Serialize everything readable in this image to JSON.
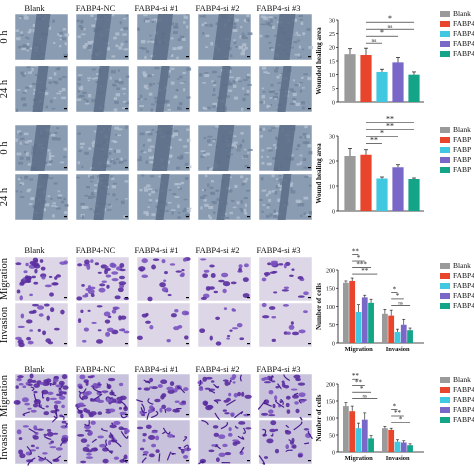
{
  "panels": [
    {
      "column_labels": [
        "Blank",
        "FABP4-NC",
        "FABP4-si #1",
        "FABP4-si #2",
        "FABP4-si #3"
      ],
      "row_labels": [
        "0 h",
        "24 h"
      ],
      "image_kind": "wound",
      "chart_data": {
        "type": "bar",
        "categories": [
          "Blank",
          "FABP4-NC",
          "FABP4-si #1",
          "FABP4-si #2",
          "FABP4-si #3"
        ],
        "values": [
          17.5,
          17.2,
          11.0,
          14.5,
          10.0
        ],
        "errors": [
          2.0,
          2.5,
          1.0,
          1.8,
          1.0
        ],
        "ylabel": "Wounded healing area",
        "ylim": [
          0,
          30
        ],
        "yticks": [
          0,
          5,
          10,
          15,
          20,
          25,
          30
        ],
        "legend": [
          "Blank",
          "FABP4",
          "FABP4",
          "FABP4",
          "FABP4"
        ],
        "significance": [
          "ns",
          "*",
          "ns",
          "*"
        ]
      }
    },
    {
      "column_labels": [],
      "row_labels": [
        "0 h",
        "24 h"
      ],
      "image_kind": "wound",
      "chart_data": {
        "type": "bar",
        "categories": [
          "Blank",
          "FABP4-NC",
          "FABP4-si #1",
          "FABP4-si #2",
          "FABP4-si #3"
        ],
        "values": [
          22.0,
          22.5,
          13.0,
          17.5,
          12.8
        ],
        "errors": [
          3.0,
          2.0,
          0.6,
          1.0,
          0.4
        ],
        "ylabel": "Wound healing area",
        "ylim": [
          0,
          30
        ],
        "yticks": [
          0,
          10,
          20,
          30
        ],
        "legend": [
          "Blank",
          "FABP",
          "FABP",
          "FABP",
          "FABP"
        ],
        "significance": [
          "**",
          "*",
          "**",
          "**"
        ]
      }
    },
    {
      "column_labels": [
        "Blank",
        "FABP4-NC",
        "FABP4-si #1",
        "FABP4-si #2",
        "FABP4-si #3"
      ],
      "row_labels": [
        "Migration",
        "Invasion"
      ],
      "image_kind": "transwell-light",
      "chart_data": {
        "type": "bar",
        "categories": [
          "Migration",
          "Invasion"
        ],
        "series": [
          {
            "name": "Blank",
            "values": [
              165,
              80
            ]
          },
          {
            "name": "FABP4",
            "values": [
              170,
              75
            ]
          },
          {
            "name": "FABP4",
            "values": [
              85,
              30
            ]
          },
          {
            "name": "FABP4",
            "values": [
              125,
              50
            ]
          },
          {
            "name": "FABP4",
            "values": [
              110,
              35
            ]
          }
        ],
        "errors": [
          [
            5,
            12
          ],
          [
            8,
            15
          ],
          [
            20,
            8
          ],
          [
            6,
            15
          ],
          [
            10,
            6
          ]
        ],
        "ylabel": "Number of cells",
        "ylim": [
          0,
          200
        ],
        "yticks": [
          0,
          50,
          100,
          150,
          200
        ],
        "significance_migration": [
          "**",
          "***",
          "*",
          "**"
        ],
        "significance_invasion": [
          "ns",
          "*",
          "*"
        ]
      }
    },
    {
      "column_labels": [
        "Blank",
        "FABP4-NC",
        "FABP4-si #1",
        "FABP4-si #2",
        "FABP4-si #3"
      ],
      "row_labels": [
        "Migration",
        "Invasion"
      ],
      "image_kind": "transwell-dark",
      "chart_data": {
        "type": "bar",
        "categories": [
          "Migration",
          "Invasion"
        ],
        "series": [
          {
            "name": "Blank",
            "values": [
              135,
              70
            ]
          },
          {
            "name": "FABP4",
            "values": [
              120,
              65
            ]
          },
          {
            "name": "FABP4",
            "values": [
              70,
              30
            ]
          },
          {
            "name": "FABP4",
            "values": [
              95,
              28
            ]
          },
          {
            "name": "FABP4",
            "values": [
              40,
              20
            ]
          }
        ],
        "errors": [
          [
            10,
            5
          ],
          [
            15,
            5
          ],
          [
            15,
            6
          ],
          [
            20,
            5
          ],
          [
            8,
            4
          ]
        ],
        "ylabel": "Number of cells",
        "ylim": [
          0,
          200
        ],
        "yticks": [
          0,
          50,
          100,
          150,
          200
        ],
        "significance_migration": [
          "ns",
          "*",
          "**",
          "**"
        ],
        "significance_invasion": [
          "*",
          "**",
          "*"
        ]
      }
    }
  ],
  "colors": [
    "#9a9a9a",
    "#e8452c",
    "#40c8e0",
    "#7a68c8",
    "#14a488"
  ]
}
